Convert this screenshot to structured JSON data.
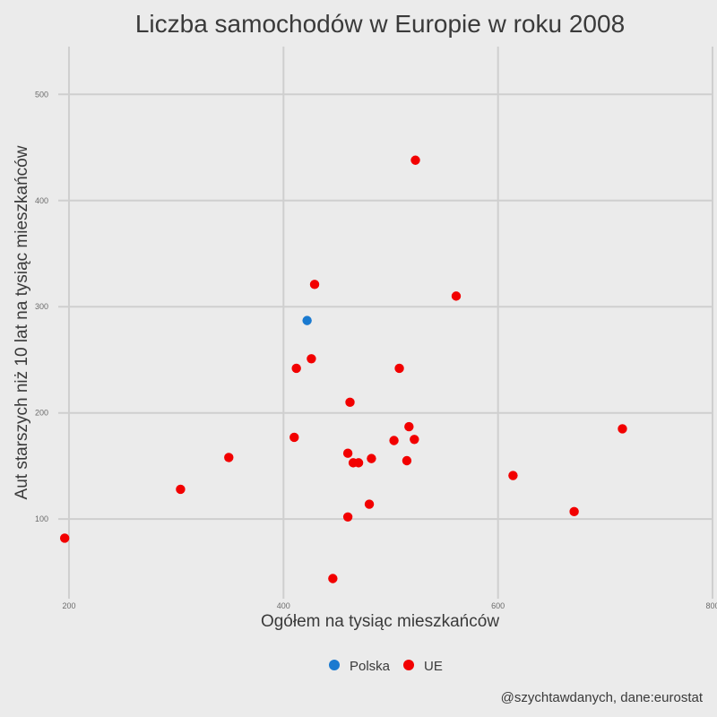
{
  "chart_data": {
    "type": "scatter",
    "title": "Liczba samochodów w Europie w roku 2008",
    "xlabel": "Ogółem na tysiąc mieszkańców",
    "ylabel": "Aut starszych niż 10 lat na tysiąc mieszkańców",
    "xlim": [
      190,
      800
    ],
    "ylim": [
      25,
      545
    ],
    "x_ticks": [
      200,
      400,
      600,
      800
    ],
    "y_ticks": [
      100,
      200,
      300,
      400,
      500
    ],
    "grid": true,
    "legend_position": "bottom",
    "colors": {
      "Polska": "#1a7ad0",
      "UE": "#f20000",
      "background": "#ebebeb",
      "grid": "#cfcfcf"
    },
    "series": [
      {
        "name": "Polska",
        "points": [
          {
            "x": 422,
            "y": 287
          }
        ]
      },
      {
        "name": "UE",
        "points": [
          {
            "x": 196,
            "y": 82
          },
          {
            "x": 304,
            "y": 128
          },
          {
            "x": 349,
            "y": 158
          },
          {
            "x": 410,
            "y": 177
          },
          {
            "x": 412,
            "y": 242
          },
          {
            "x": 426,
            "y": 251
          },
          {
            "x": 429,
            "y": 321
          },
          {
            "x": 446,
            "y": 44
          },
          {
            "x": 460,
            "y": 102
          },
          {
            "x": 460,
            "y": 162
          },
          {
            "x": 462,
            "y": 210
          },
          {
            "x": 465,
            "y": 153
          },
          {
            "x": 470,
            "y": 153
          },
          {
            "x": 480,
            "y": 114
          },
          {
            "x": 482,
            "y": 157
          },
          {
            "x": 503,
            "y": 174
          },
          {
            "x": 508,
            "y": 242
          },
          {
            "x": 515,
            "y": 155
          },
          {
            "x": 517,
            "y": 187
          },
          {
            "x": 522,
            "y": 175
          },
          {
            "x": 523,
            "y": 438
          },
          {
            "x": 561,
            "y": 310
          },
          {
            "x": 614,
            "y": 141
          },
          {
            "x": 671,
            "y": 107
          },
          {
            "x": 716,
            "y": 185
          }
        ]
      }
    ],
    "caption": "@szychtawdanych, dane:eurostat"
  }
}
